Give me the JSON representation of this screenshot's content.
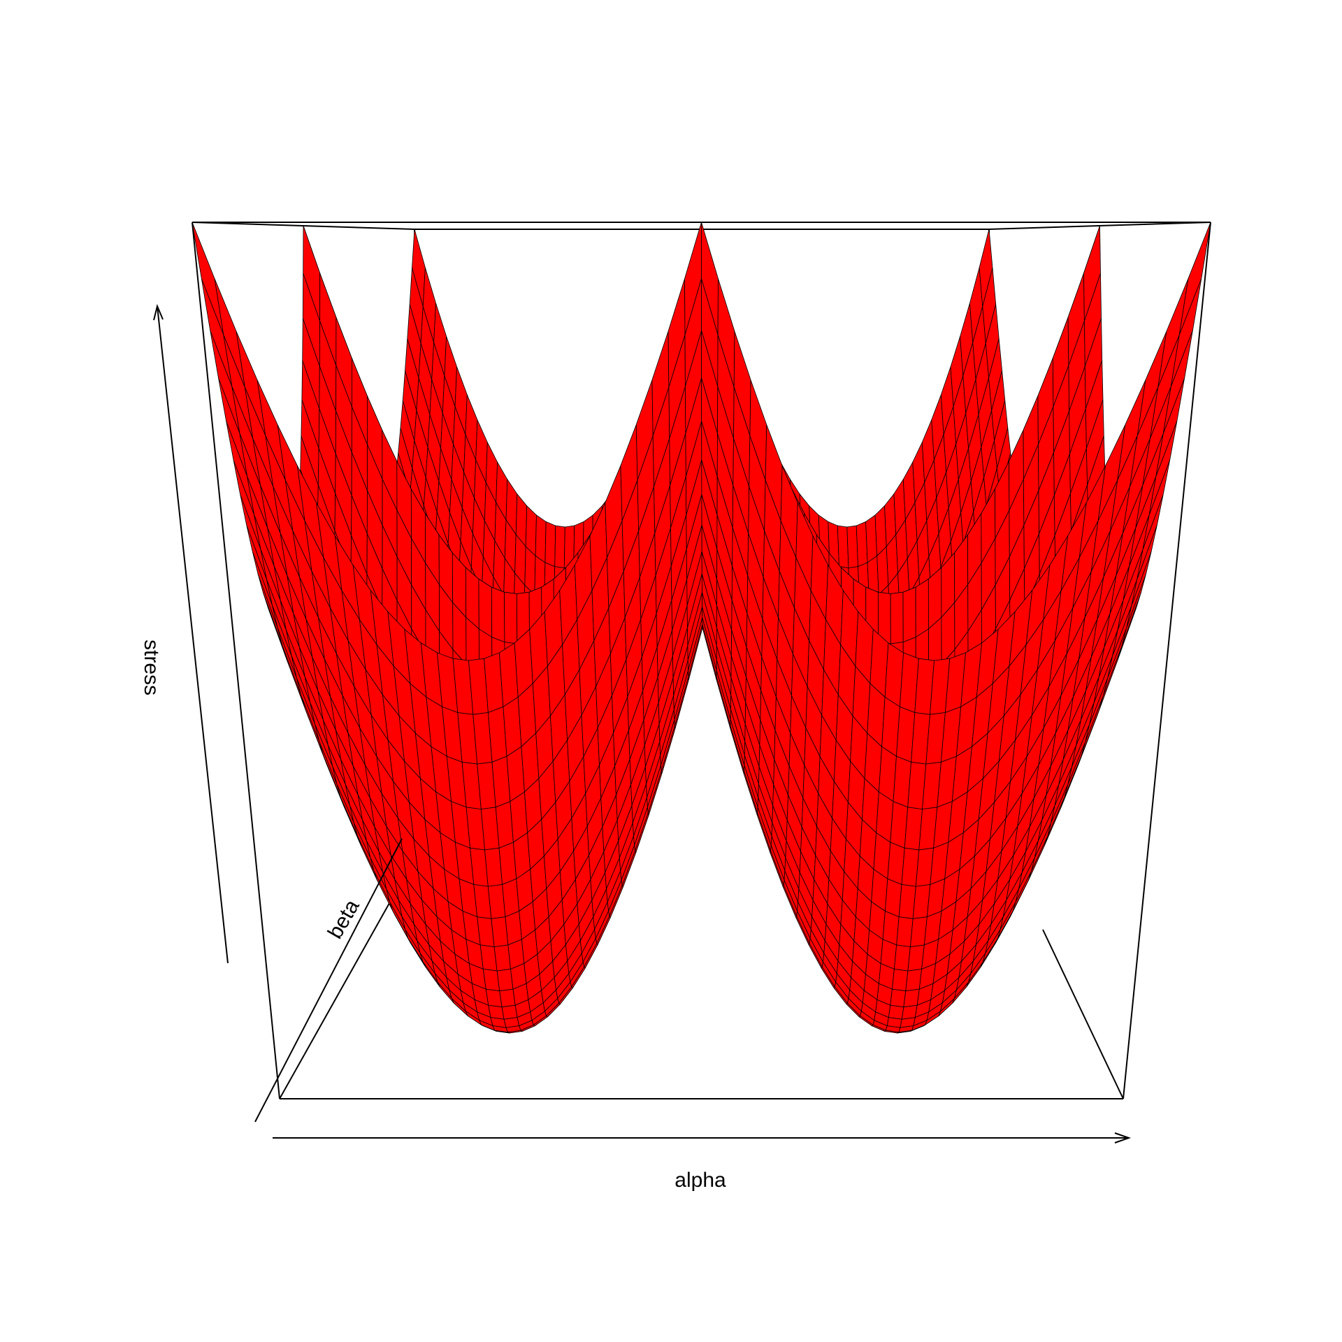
{
  "chart_data": {
    "type": "surface",
    "xlabel": "alpha",
    "ylabel": "beta",
    "zlabel": "stress",
    "surface_color": "#ff0000",
    "mesh_color": "#000000",
    "grid": false,
    "xlim": [
      -1,
      1
    ],
    "ylim": [
      -1,
      1
    ],
    "description_of_surface": "stress = min over four quadratic bowls centred at alpha=±0.5, beta=±0.5",
    "bowls": [
      {
        "alpha": -0.5,
        "beta": -0.5
      },
      {
        "alpha": 0.5,
        "beta": -0.5
      },
      {
        "alpha": -0.5,
        "beta": 0.5
      },
      {
        "alpha": 0.5,
        "beta": 0.5
      }
    ],
    "grid_resolution": 60
  }
}
